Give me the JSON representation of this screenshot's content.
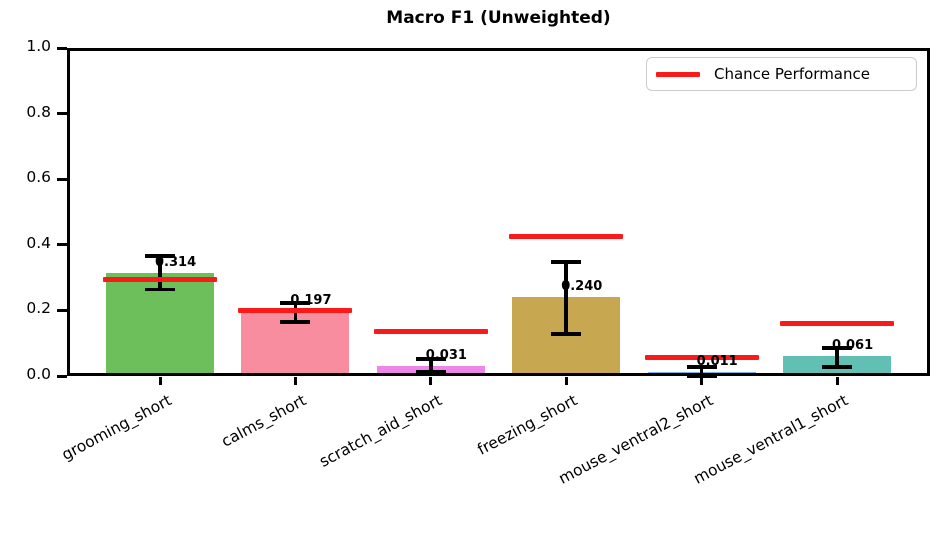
{
  "chart_data": {
    "type": "bar",
    "title": "Macro F1 (Unweighted)",
    "categories": [
      "grooming_short",
      "calms_short",
      "scratch_aid_short",
      "freezing_short",
      "mouse_ventral2_short",
      "mouse_ventral1_short"
    ],
    "values": [
      0.314,
      0.197,
      0.031,
      0.24,
      0.011,
      0.061
    ],
    "bar_labels": [
      "0.314",
      "0.197",
      "0.031",
      "0.240",
      "0.011",
      "0.061"
    ],
    "bar_colors": [
      "#6cbf5a",
      "#f88da0",
      "#ee86e9",
      "#c8a751",
      "#73b3ea",
      "#61bfb3"
    ],
    "error_low": [
      0.263,
      0.165,
      0.012,
      0.128,
      0.0,
      0.027
    ],
    "error_high": [
      0.366,
      0.223,
      0.052,
      0.348,
      0.027,
      0.085
    ],
    "chance_values": [
      0.293,
      0.2,
      0.135,
      0.425,
      0.057,
      0.161
    ],
    "chance_color": "#fa1a1a",
    "errorbar_color": "#000000",
    "xlabel": "",
    "ylabel": "",
    "ylim": [
      0.0,
      1.0
    ],
    "yticks": [
      "0.0",
      "0.2",
      "0.4",
      "0.6",
      "0.8",
      "1.0"
    ],
    "grid": false,
    "legend": {
      "entries": [
        "Chance Performance"
      ],
      "position": "upper right"
    }
  }
}
